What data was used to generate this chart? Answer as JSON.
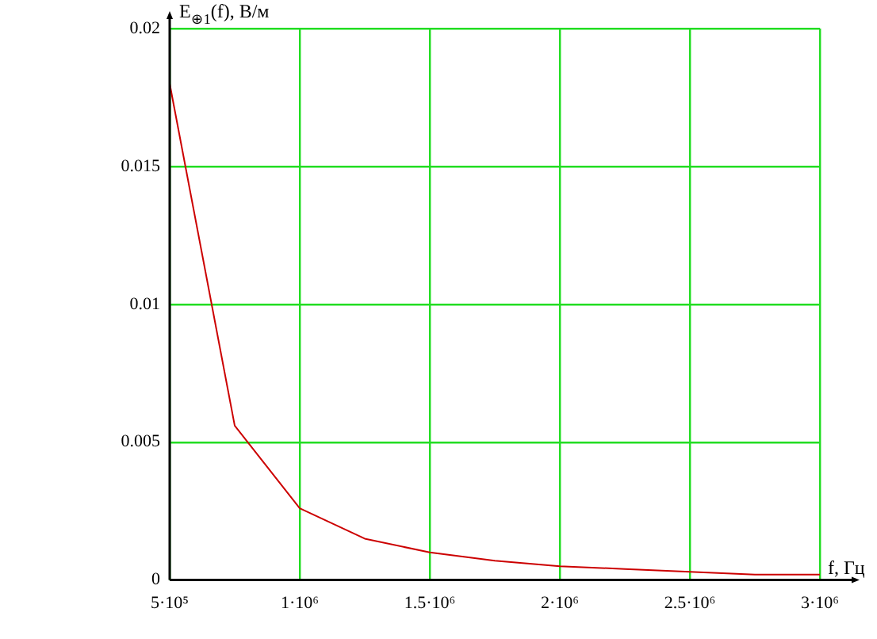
{
  "chart_data": {
    "type": "line",
    "xlabel": "f, Гц",
    "ylabel": "E$_{⊕1}$(f), В/м",
    "x": [
      500000,
      750000,
      1000000,
      1250000,
      1500000,
      1750000,
      2000000,
      2250000,
      2500000,
      2750000,
      3000000
    ],
    "series": [
      {
        "color": "#cc0000",
        "values": [
          0.018,
          0.0056,
          0.0026,
          0.0015,
          0.001,
          0.0007,
          0.0005,
          0.0004,
          0.0003,
          0.0002,
          0.0002
        ]
      }
    ],
    "xlim": [
      500000,
      3000000
    ],
    "xticks": [
      {
        "value": 500000,
        "label": "5·10⁵"
      },
      {
        "value": 1000000,
        "label": "1·10⁶"
      },
      {
        "value": 1500000,
        "label": "1.5·10⁶"
      },
      {
        "value": 2000000,
        "label": "2·10⁶"
      },
      {
        "value": 2500000,
        "label": "2.5·10⁶"
      },
      {
        "value": 3000000,
        "label": "3·10⁶"
      }
    ],
    "ylim": [
      0,
      0.02
    ],
    "yticks": [
      0,
      0.005,
      0.01,
      0.015,
      0.02
    ],
    "grid": true,
    "legend": false,
    "marker": "none",
    "line_style": "solid"
  }
}
